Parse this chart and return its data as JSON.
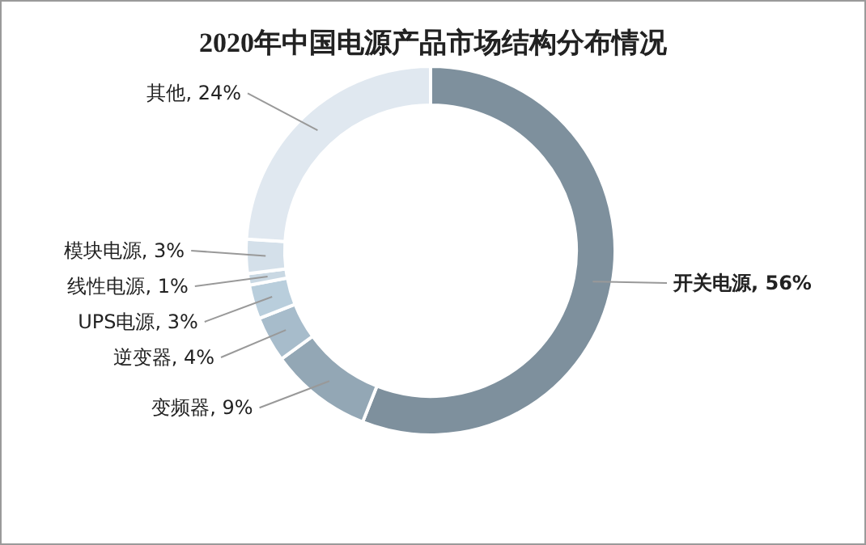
{
  "chart_data": {
    "type": "donut",
    "title": "2020年中国电源产品市场结构分布情况",
    "categories": [
      "开关电源",
      "变频器",
      "逆变器",
      "UPS电源",
      "线性电源",
      "模块电源",
      "其他"
    ],
    "values": [
      56,
      9,
      4,
      3,
      1,
      3,
      24
    ],
    "value_labels": [
      "56%",
      "9%",
      "4%",
      "3%",
      "1%",
      "3%",
      "24%"
    ],
    "colors": [
      "#7e909d",
      "#93a7b5",
      "#a7bccb",
      "#b9cedc",
      "#c9d8e3",
      "#d4e0ea",
      "#e0e8f0"
    ]
  }
}
